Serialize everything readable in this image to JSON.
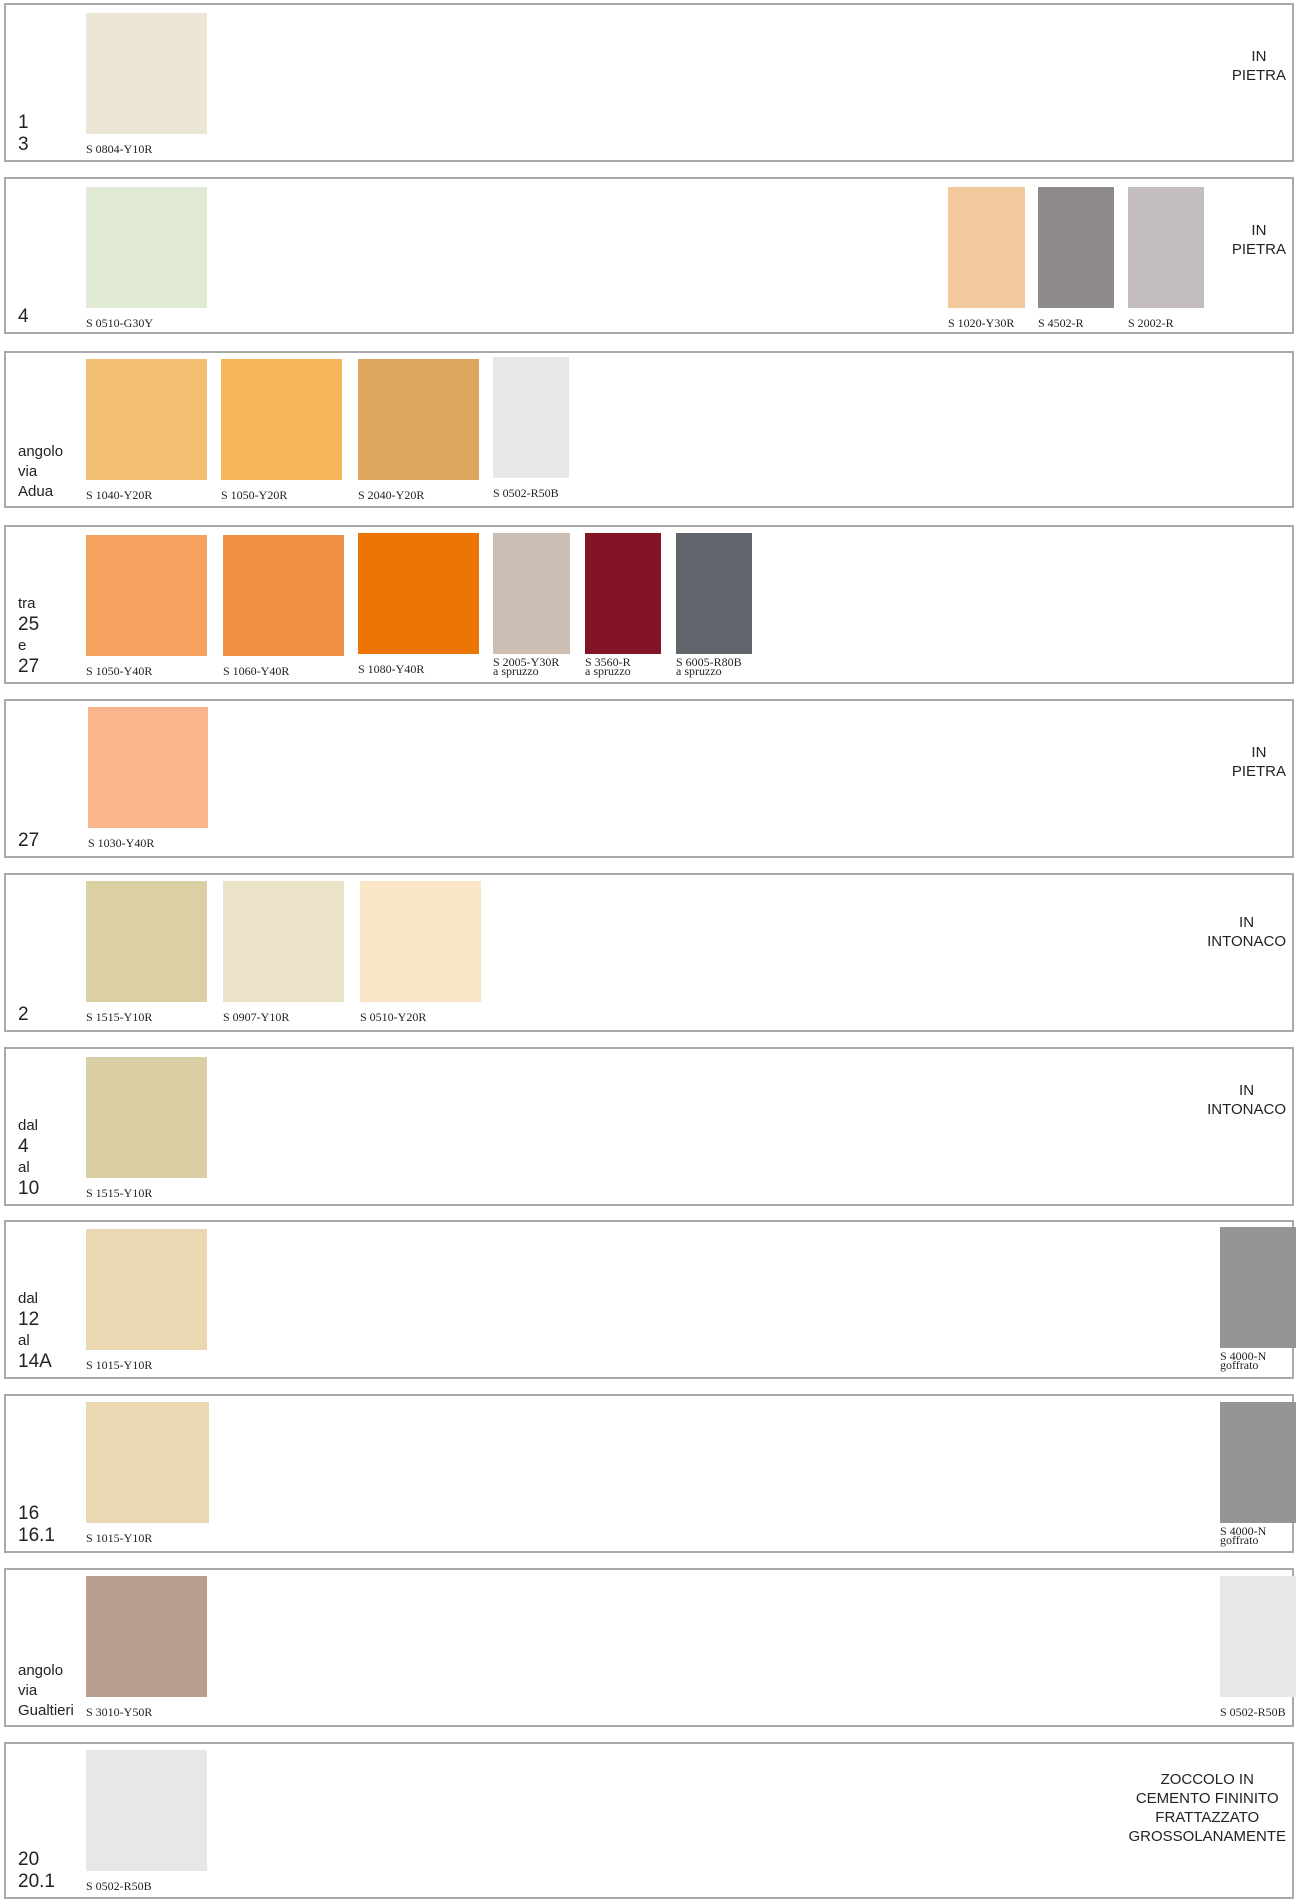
{
  "rows": [
    {
      "label": [
        "1",
        "3"
      ],
      "swatches": [
        {
          "code": "S  0804-Y10R",
          "color": "#ebe6d6"
        }
      ],
      "material": [
        "IN",
        "PIETRA"
      ]
    },
    {
      "label": [
        "4"
      ],
      "swatches": [
        {
          "code": "S  0510-G30Y",
          "color": "#e1ead4"
        },
        {
          "code": "S  1020-Y30R",
          "color": "#f1c99d"
        },
        {
          "code": "S  4502-R",
          "color": "#8e8a8a"
        },
        {
          "code": "S  2002-R",
          "color": "#c3bebd"
        }
      ],
      "material": [
        "IN",
        "PIETRA"
      ]
    },
    {
      "label": [
        "angolo",
        "via",
        "Adua"
      ],
      "swatches": [
        {
          "code": "S  1040-Y20R",
          "color": "#f3bf72"
        },
        {
          "code": "S  1050-Y20R",
          "color": "#f6b45b"
        },
        {
          "code": "S  2040-Y20R",
          "color": "#dea65f"
        },
        {
          "code": "S  0502-R50B",
          "color": "#e8e6e9"
        }
      ],
      "material": []
    },
    {
      "label": [
        "tra",
        "25",
        "e",
        "27"
      ],
      "swatches": [
        {
          "code": "S  1050-Y40R",
          "color": "#f4a25d"
        },
        {
          "code": "S  1060-Y40R",
          "color": "#f09146"
        },
        {
          "code": "S  1080-Y40R",
          "color": "#ec7503"
        },
        {
          "code": "S  2005-Y30R",
          "note": "a  spruzzo",
          "color": "#cbbdb2"
        },
        {
          "code": "S  3560-R",
          "note": "a  spruzzo",
          "color": "#821426"
        },
        {
          "code": "S  6005-R80B",
          "note": "a  spruzzo",
          "color": "#5f656b"
        }
      ],
      "material": []
    },
    {
      "label": [
        "27"
      ],
      "swatches": [
        {
          "code": "S  1030-Y40R",
          "color": "#fbb58d"
        }
      ],
      "material": [
        "IN",
        "PIETRA"
      ]
    },
    {
      "label": [
        "2"
      ],
      "swatches": [
        {
          "code": "S  1515-Y10R",
          "color": "#dbcfa4"
        },
        {
          "code": "S  0907-Y10R",
          "color": "#eae3c7"
        },
        {
          "code": "S  0510-Y20R",
          "color": "#fae6c6"
        }
      ],
      "material": [
        "IN",
        "INTONACO"
      ]
    },
    {
      "label": [
        "dal",
        "4",
        "al",
        "10"
      ],
      "swatches": [
        {
          "code": "S  1515-Y10R",
          "color": "#dacea4"
        }
      ],
      "material": [
        "IN",
        "INTONACO"
      ]
    },
    {
      "label": [
        "dal",
        "12",
        "al",
        "14A"
      ],
      "swatches": [
        {
          "code": "S  1015-Y10R",
          "color": "#e9d8b1"
        },
        {
          "code": "S  4000-N",
          "note": "goffrato",
          "color": "#959595"
        }
      ],
      "material": []
    },
    {
      "label": [
        "16",
        "16.1"
      ],
      "swatches": [
        {
          "code": "S  1015-Y10R",
          "color": "#e9d8b1"
        },
        {
          "code": "S  4000-N",
          "note": "goffrato",
          "color": "#959595"
        }
      ],
      "material": []
    },
    {
      "label": [
        "angolo",
        "via",
        "Gualtieri"
      ],
      "swatches": [
        {
          "code": "S  3010-Y50R",
          "color": "#b89f8f"
        },
        {
          "code": "S  0502-R50B",
          "color": "#e8e6e9"
        }
      ],
      "material": []
    },
    {
      "label": [
        "20",
        "20.1"
      ],
      "swatches": [
        {
          "code": "S  0502-R50B",
          "color": "#e8e6e9"
        }
      ],
      "material": [
        "ZOCCOLO  IN",
        "CEMENTO  FININITO",
        "FRATTAZZATO",
        "GROSSOLANAMENTE"
      ]
    }
  ]
}
